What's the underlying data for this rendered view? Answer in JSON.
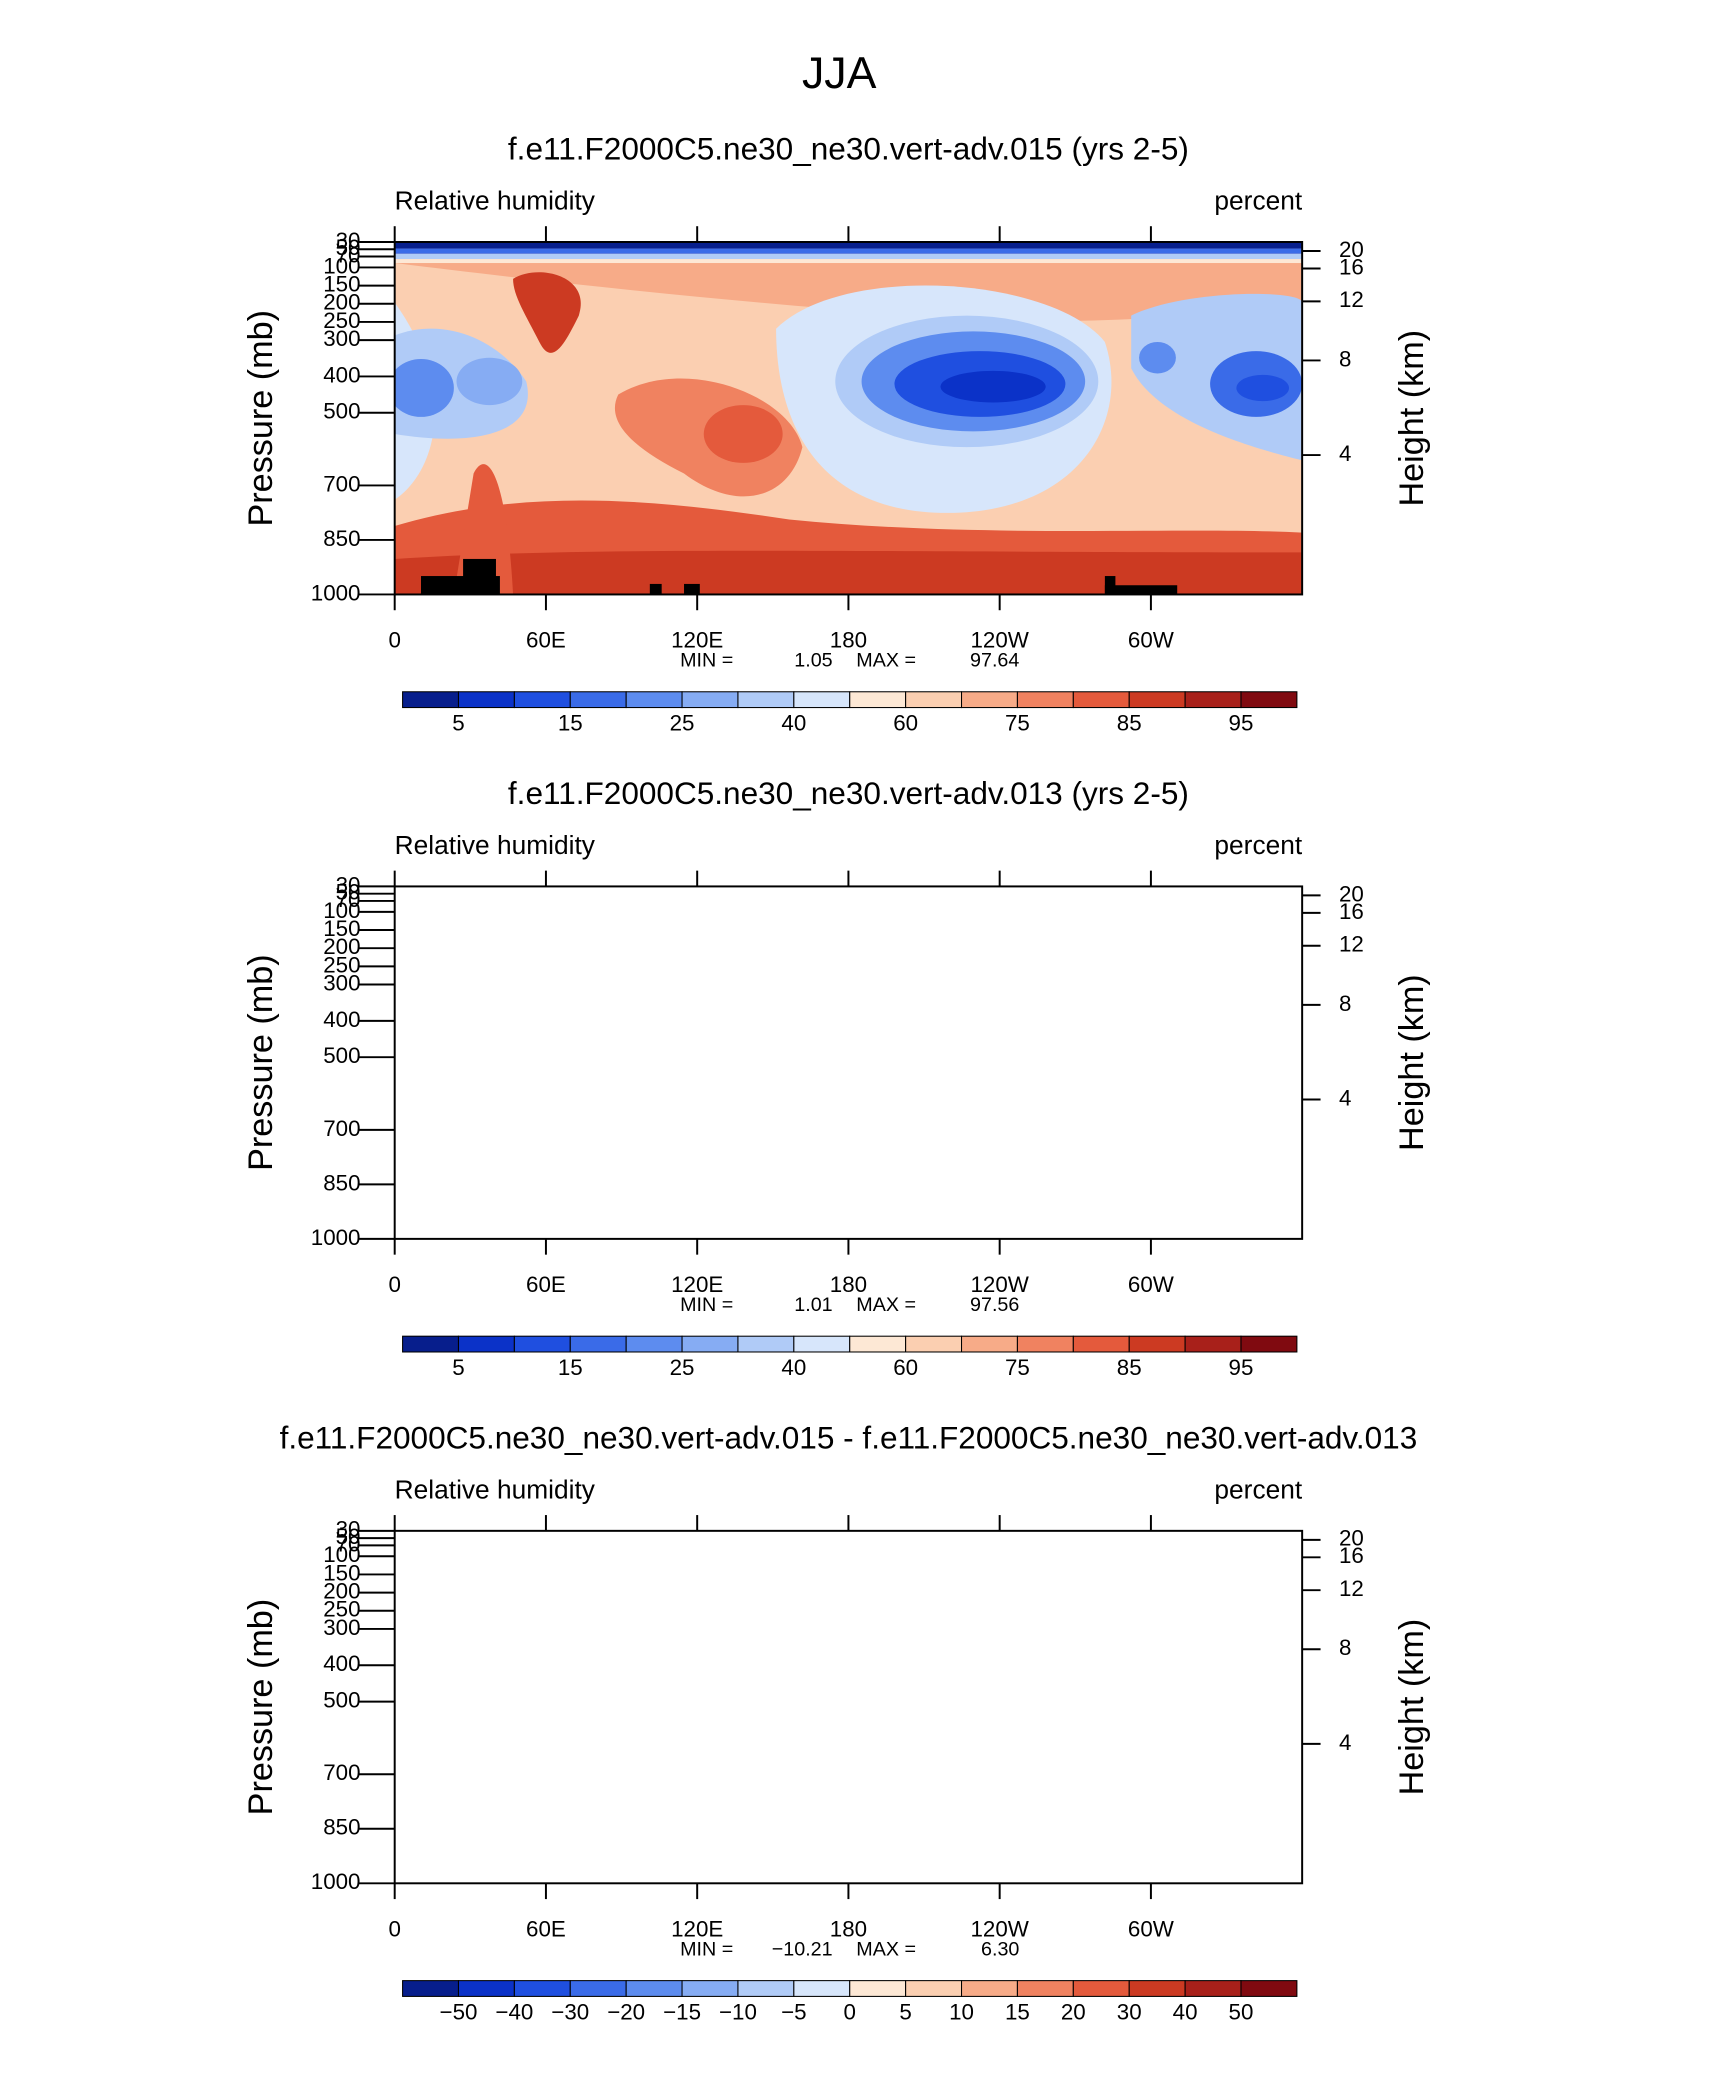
{
  "title": "JJA",
  "chart_data": [
    {
      "type": "contour",
      "title": "f.e11.F2000C5.ne30_ne30.vert-adv.015 (yrs 2-5)",
      "subtitle_left": "Relative humidity",
      "subtitle_right": "percent",
      "ylabel": "Pressure (mb)",
      "y2label": "Height (km)",
      "xlim": [
        0,
        360
      ],
      "xticks": [
        0,
        {
          "value": 60,
          "label": "60E"
        },
        {
          "value": 120,
          "label": "120E"
        },
        180,
        {
          "value": 240,
          "label": "120W"
        },
        {
          "value": 300,
          "label": "60W"
        }
      ],
      "ylim": [
        1000,
        30
      ],
      "yticks": [
        1000,
        850,
        700,
        500,
        400,
        300,
        250,
        200,
        150,
        100,
        70,
        50,
        30
      ],
      "y2ticks": [
        20,
        16,
        12,
        8,
        4
      ],
      "stats": {
        "min_label": "MIN =",
        "min": 1.05,
        "max_label": "MAX =",
        "max": 97.64
      },
      "colorbar": {
        "colors": [
          "#071e8c",
          "#0b32c8",
          "#1f4fe0",
          "#3a6be8",
          "#5d8cef",
          "#86acf3",
          "#b0cbf7",
          "#d7e6fb",
          "#fde8d5",
          "#fbcfb1",
          "#f7ab88",
          "#f08260",
          "#e45a3c",
          "#cc3a22",
          "#a8201a",
          "#800a10"
        ],
        "levels": [
          5,
          null,
          15,
          null,
          25,
          null,
          40,
          null,
          60,
          null,
          75,
          null,
          85,
          null,
          95
        ]
      }
    },
    {
      "type": "contour",
      "title": "f.e11.F2000C5.ne30_ne30.vert-adv.013 (yrs 2-5)",
      "subtitle_left": "Relative humidity",
      "subtitle_right": "percent",
      "ylabel": "Pressure (mb)",
      "y2label": "Height (km)",
      "xlim": [
        0,
        360
      ],
      "xticks": [
        0,
        {
          "value": 60,
          "label": "60E"
        },
        {
          "value": 120,
          "label": "120E"
        },
        180,
        {
          "value": 240,
          "label": "120W"
        },
        {
          "value": 300,
          "label": "60W"
        }
      ],
      "ylim": [
        1000,
        30
      ],
      "yticks": [
        1000,
        850,
        700,
        500,
        400,
        300,
        250,
        200,
        150,
        100,
        70,
        50,
        30
      ],
      "y2ticks": [
        20,
        16,
        12,
        8,
        4
      ],
      "stats": {
        "min_label": "MIN =",
        "min": 1.01,
        "max_label": "MAX =",
        "max": 97.56
      },
      "colorbar": {
        "colors": [
          "#071e8c",
          "#0b32c8",
          "#1f4fe0",
          "#3a6be8",
          "#5d8cef",
          "#86acf3",
          "#b0cbf7",
          "#d7e6fb",
          "#fde8d5",
          "#fbcfb1",
          "#f7ab88",
          "#f08260",
          "#e45a3c",
          "#cc3a22",
          "#a8201a",
          "#800a10"
        ],
        "levels": [
          5,
          null,
          15,
          null,
          25,
          null,
          40,
          null,
          60,
          null,
          75,
          null,
          85,
          null,
          95
        ]
      }
    },
    {
      "type": "contour",
      "title": "f.e11.F2000C5.ne30_ne30.vert-adv.015 - f.e11.F2000C5.ne30_ne30.vert-adv.013",
      "subtitle_left": "Relative humidity",
      "subtitle_right": "percent",
      "ylabel": "Pressure (mb)",
      "y2label": "Height (km)",
      "xlim": [
        0,
        360
      ],
      "xticks": [
        0,
        {
          "value": 60,
          "label": "60E"
        },
        {
          "value": 120,
          "label": "120E"
        },
        180,
        {
          "value": 240,
          "label": "120W"
        },
        {
          "value": 300,
          "label": "60W"
        }
      ],
      "ylim": [
        1000,
        30
      ],
      "yticks": [
        1000,
        850,
        700,
        500,
        400,
        300,
        250,
        200,
        150,
        100,
        70,
        50,
        30
      ],
      "y2ticks": [
        20,
        16,
        12,
        8,
        4
      ],
      "stats": {
        "min_label": "MIN =",
        "min": {
          "value": -10.21,
          "label": "−10.21"
        },
        "max_label": "MAX =",
        "max": {
          "value": 6.3,
          "label": "6.30"
        }
      },
      "colorbar": {
        "colors": [
          "#071e8c",
          "#0b32c8",
          "#1f4fe0",
          "#3a6be8",
          "#5d8cef",
          "#86acf3",
          "#b0cbf7",
          "#d7e6fb",
          "#fde8d5",
          "#fbcfb1",
          "#f7ab88",
          "#f08260",
          "#e45a3c",
          "#cc3a22",
          "#a8201a",
          "#800a10"
        ],
        "levels": [
          {
            "value": -50,
            "label": "−50"
          },
          {
            "value": -40,
            "label": "−40"
          },
          {
            "value": -30,
            "label": "−30"
          },
          {
            "value": -20,
            "label": "−20"
          },
          {
            "value": -15,
            "label": "−15"
          },
          {
            "value": -10,
            "label": "−10"
          },
          {
            "value": -5,
            "label": "−5"
          },
          0,
          5,
          10,
          15,
          20,
          30,
          40,
          50
        ]
      }
    }
  ]
}
